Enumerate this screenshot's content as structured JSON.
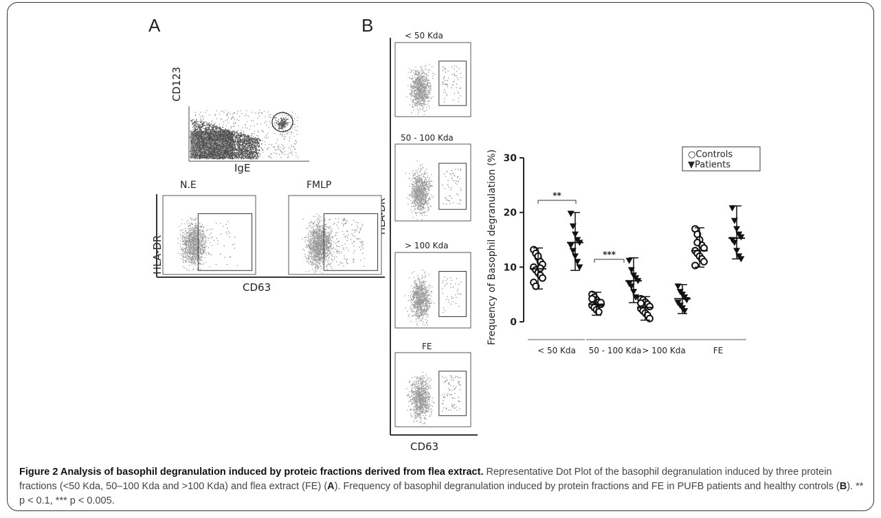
{
  "panels": {
    "a": "A",
    "b": "B"
  },
  "panel_a": {
    "gating_plot": {
      "ylabel": "CD123",
      "xlabel": "IgE"
    },
    "dot_plots": [
      {
        "title": "N.E"
      },
      {
        "title": "FMLP"
      }
    ],
    "shared_ylabel": "HLA-DR",
    "shared_xlabel": "CD63"
  },
  "panel_b": {
    "dot_plots": [
      {
        "title": "< 50 Kda"
      },
      {
        "title": "50 - 100 Kda"
      },
      {
        "title": "> 100 Kda"
      },
      {
        "title": "FE"
      }
    ],
    "shared_ylabel": "HLA-DR",
    "shared_xlabel": "CD63"
  },
  "chart_data": {
    "type": "scatter",
    "title": "",
    "ylabel": "Frequency of Basophil degranulation (%)",
    "ylim": [
      0,
      30
    ],
    "yticks": [
      0,
      10,
      20,
      30
    ],
    "categories": [
      "< 50 Kda",
      "50 - 100 Kda",
      "> 100 Kda",
      "FE"
    ],
    "legend_position": "top-right",
    "series": [
      {
        "name": "Controls",
        "marker": "circle",
        "values": [
          [
            13.2,
            12.5,
            11.8,
            11.0,
            10.5,
            10.0,
            9.5,
            9.0,
            8.5,
            8.0,
            7.2,
            6.5,
            12.0,
            9.8
          ],
          [
            5.0,
            4.5,
            4.0,
            3.6,
            3.2,
            3.0,
            2.6,
            2.2,
            1.8,
            3.5,
            4.2
          ],
          [
            4.2,
            4.0,
            3.6,
            3.2,
            2.8,
            2.4,
            2.0,
            1.6,
            1.2,
            0.6,
            3.4
          ],
          [
            17.0,
            16.0,
            15.0,
            14.0,
            13.5,
            13.0,
            12.5,
            12.0,
            11.5,
            11.0,
            10.3,
            14.5
          ]
        ],
        "mean": [
          9.7,
          3.2,
          2.6,
          13.0
        ],
        "sd_high": [
          13.5,
          5.4,
          4.6,
          17.2
        ],
        "sd_low": [
          6.0,
          1.2,
          0.3,
          10.0
        ]
      },
      {
        "name": "Patients",
        "marker": "triangle-down",
        "values": [
          [
            19.8,
            17.5,
            16.0,
            15.0,
            14.5,
            14.0,
            13.0,
            12.0,
            11.0,
            10.0
          ],
          [
            11.2,
            9.5,
            8.5,
            8.0,
            7.5,
            7.0,
            6.5,
            5.5,
            4.5
          ],
          [
            6.5,
            5.5,
            5.0,
            4.5,
            4.0,
            3.5,
            3.0,
            2.5,
            2.0
          ],
          [
            20.8,
            18.5,
            17.0,
            16.0,
            15.5,
            15.0,
            14.5,
            13.0,
            12.0,
            11.5
          ]
        ],
        "mean": [
          14.5,
          7.5,
          4.2,
          15.3
        ],
        "sd_high": [
          20.0,
          11.7,
          6.8,
          21.2
        ],
        "sd_low": [
          9.4,
          3.5,
          1.5,
          11.5
        ]
      }
    ],
    "significance": [
      {
        "category_index": 0,
        "label": "**"
      },
      {
        "category_index": 1,
        "label": "***"
      }
    ]
  },
  "caption": {
    "bold_lead": "Figure 2 Analysis of basophil degranulation induced by proteic fractions derived from flea extract.",
    "part1": " Representative Dot Plot of the basophil degranulation induced by three protein fractions (<50 Kda, 50–100 Kda and >100 Kda) and flea extract (FE) (",
    "ref_a": "A",
    "part2": "). Frequency of basophil degranulation induced by protein fractions and FE in PUFB patients and healthy controls (",
    "ref_b": "B",
    "part3": "). ** p < 0.1, *** p < 0.005."
  }
}
